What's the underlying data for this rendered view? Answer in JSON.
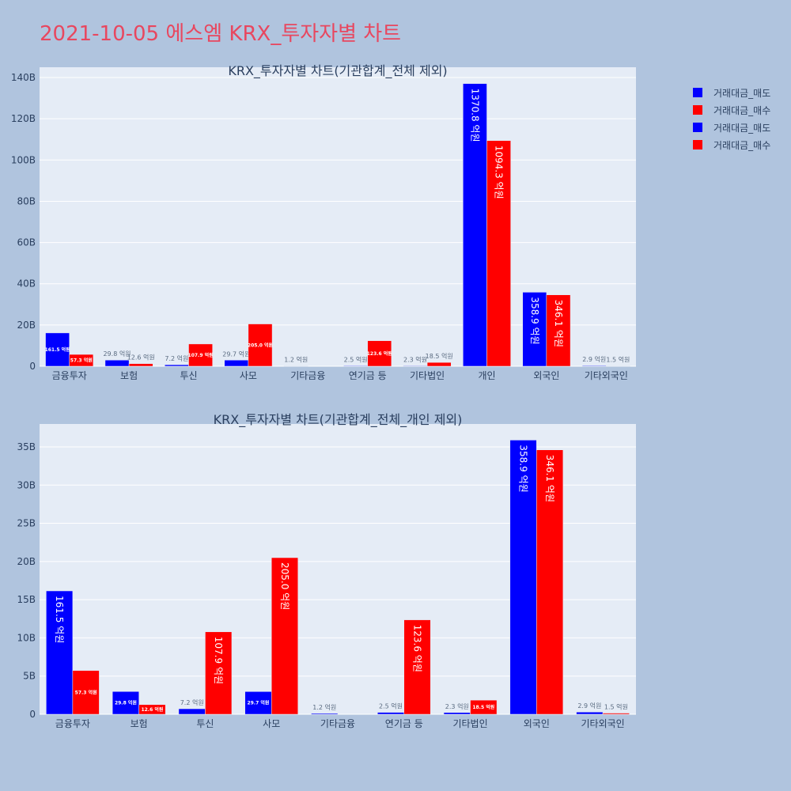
{
  "page_title": "2021-10-05 에스엠 KRX_투자자별 차트",
  "legend": [
    {
      "label": "거래대금_매도",
      "color": "#0000ff"
    },
    {
      "label": "거래대금_매수",
      "color": "#ff0000"
    },
    {
      "label": "거래대금_매도",
      "color": "#0000ff"
    },
    {
      "label": "거래대금_매수",
      "color": "#ff0000"
    }
  ],
  "chart_data": [
    {
      "type": "bar",
      "title": "KRX_투자자별 차트(기관합계_전체 제외)",
      "categories": [
        "금융투자",
        "보험",
        "투신",
        "사모",
        "기타금융",
        "연기금 등",
        "기타법인",
        "개인",
        "외국인",
        "기타외국인"
      ],
      "ylim": [
        0,
        145
      ],
      "yticks": [
        0,
        20,
        40,
        60,
        80,
        100,
        120,
        140
      ],
      "ytick_labels": [
        "0",
        "20B",
        "40B",
        "60B",
        "80B",
        "100B",
        "120B",
        "140B"
      ],
      "series": [
        {
          "name": "거래대금_매도",
          "color": "#0000ff",
          "values": [
            16.15,
            2.98,
            0.72,
            2.97,
            0.12,
            0.25,
            0.23,
            137.08,
            35.89,
            0.29
          ],
          "labels": [
            "161.5 억원",
            "29.8 억원",
            "7.2 억원",
            "29.7 억원",
            "1.2 억원",
            "2.5 억원",
            "2.3 억원",
            "1370.8 억원",
            "358.9 억원",
            "2.9 억원"
          ]
        },
        {
          "name": "거래대금_매수",
          "color": "#ff0000",
          "values": [
            5.73,
            1.26,
            10.79,
            20.5,
            0,
            12.36,
            1.85,
            109.43,
            34.61,
            0.15
          ],
          "labels": [
            "57.3 억원",
            "12.6 억원",
            "107.9 억원",
            "205.0 억원",
            "",
            "123.6 억원",
            "18.5 억원",
            "1094.3 억원",
            "346.1 억원",
            "1.5 억원"
          ]
        }
      ],
      "grid": true
    },
    {
      "type": "bar",
      "title": "KRX_투자자별 차트(기관합계_전체_개인 제외)",
      "categories": [
        "금융투자",
        "보험",
        "투신",
        "사모",
        "기타금융",
        "연기금 등",
        "기타법인",
        "외국인",
        "기타외국인"
      ],
      "ylim": [
        0,
        38
      ],
      "yticks": [
        0,
        5,
        10,
        15,
        20,
        25,
        30,
        35
      ],
      "ytick_labels": [
        "0",
        "5B",
        "10B",
        "15B",
        "20B",
        "25B",
        "30B",
        "35B"
      ],
      "series": [
        {
          "name": "거래대금_매도",
          "color": "#0000ff",
          "values": [
            16.15,
            2.98,
            0.72,
            2.97,
            0.12,
            0.25,
            0.23,
            35.89,
            0.29
          ],
          "labels": [
            "161.5 억원",
            "29.8 억원",
            "7.2 억원",
            "29.7 억원",
            "1.2 억원",
            "2.5 억원",
            "2.3 억원",
            "358.9 억원",
            "2.9 억원"
          ]
        },
        {
          "name": "거래대금_매수",
          "color": "#ff0000",
          "values": [
            5.73,
            1.26,
            10.79,
            20.5,
            0,
            12.36,
            1.85,
            34.61,
            0.15
          ],
          "labels": [
            "57.3 억원",
            "12.6 억원",
            "107.9 억원",
            "205.0 억원",
            "",
            "123.6 억원",
            "18.5 억원",
            "346.1 억원",
            "1.5 억원"
          ]
        }
      ],
      "grid": true
    }
  ]
}
